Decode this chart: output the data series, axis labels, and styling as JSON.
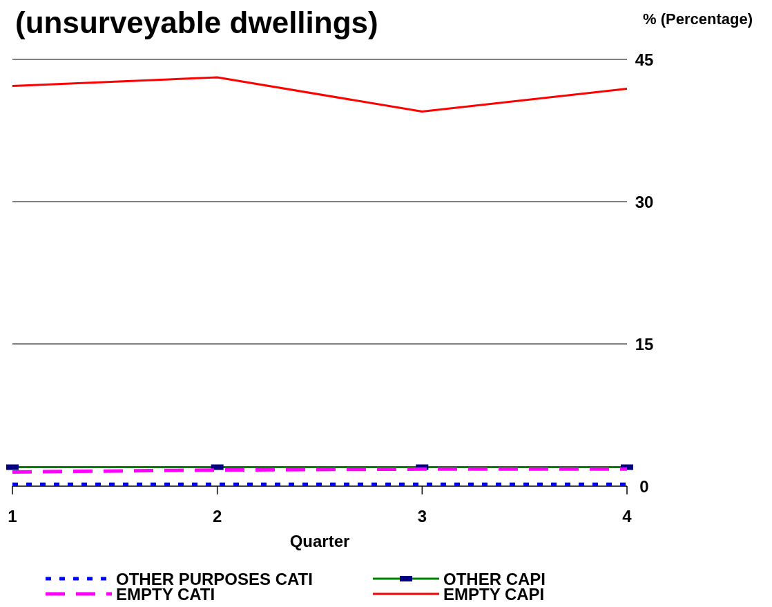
{
  "chart_data": {
    "type": "line",
    "title": "(unsurveyable dwellings)",
    "ylabel": "% (Percentage)",
    "xlabel": "Quarter",
    "x": [
      1,
      2,
      3,
      4
    ],
    "xlim": [
      1,
      4
    ],
    "xticks": [
      1,
      2,
      3,
      4
    ],
    "ylim": [
      0,
      45
    ],
    "yticks": [
      0,
      15,
      30,
      45
    ],
    "grid": "y",
    "legend": "bottom",
    "series": [
      {
        "name": "OTHER PURPOSES CATI",
        "color": "#0000ff",
        "line_style": "dotted",
        "marker": "none",
        "values": [
          0.2,
          0.2,
          0.2,
          0.2
        ]
      },
      {
        "name": "OTHER CAPI",
        "color": "#008000",
        "line_style": "solid",
        "marker": "square",
        "values": [
          2.0,
          2.0,
          2.0,
          2.0
        ]
      },
      {
        "name": "EMPTY CATI",
        "color": "#ff00ff",
        "line_style": "dashed",
        "marker": "none",
        "values": [
          1.5,
          1.7,
          1.8,
          1.8
        ]
      },
      {
        "name": "EMPTY CAPI",
        "color": "#ff0000",
        "line_style": "solid",
        "marker": "none",
        "values": [
          42.2,
          43.1,
          39.5,
          41.9
        ]
      }
    ]
  }
}
